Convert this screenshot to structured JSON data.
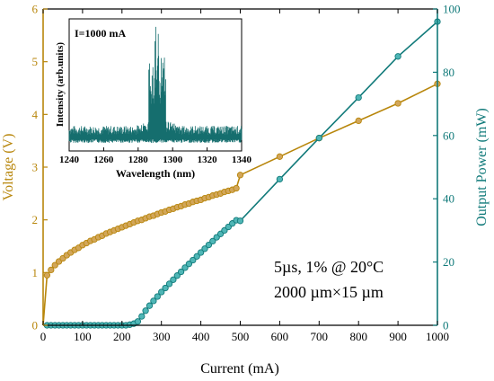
{
  "chart_data": {
    "type": "line",
    "colors": {
      "voltage": "#b8860b",
      "voltage_fill": "#d2a65a",
      "power": "#117a7a",
      "power_fill": "#4fb6b6",
      "axes": "#000000",
      "inset": "#156e6e"
    },
    "xlabel": "Current (mA)",
    "ylabel_left": "Voltage (V)",
    "ylabel_right": "Output Power (mW)",
    "xlim": [
      0,
      1000
    ],
    "ylim_left": [
      0,
      6
    ],
    "ylim_right": [
      0,
      100
    ],
    "xticks": [
      "0",
      "100",
      "200",
      "300",
      "400",
      "500",
      "600",
      "700",
      "800",
      "900",
      "1000"
    ],
    "yticks_left": [
      "0",
      "1",
      "2",
      "3",
      "4",
      "5",
      "6"
    ],
    "yticks_right": [
      "0",
      "20",
      "40",
      "60",
      "80",
      "100"
    ],
    "annotation_lines": [
      "5µs, 1% @ 20°C",
      "2000 µm×15 µm"
    ],
    "series": [
      {
        "axis": "left",
        "x": [
          0,
          10,
          20,
          30,
          40,
          50,
          60,
          70,
          80,
          90,
          100,
          110,
          120,
          130,
          140,
          150,
          160,
          170,
          180,
          190,
          200,
          210,
          220,
          230,
          240,
          250,
          260,
          270,
          280,
          290,
          300,
          310,
          320,
          330,
          340,
          350,
          360,
          370,
          380,
          390,
          400,
          410,
          420,
          430,
          440,
          450,
          460,
          470,
          480,
          490,
          500,
          600,
          700,
          800,
          900,
          1000
        ],
        "values": [
          0,
          0.95,
          1.05,
          1.14,
          1.21,
          1.27,
          1.33,
          1.38,
          1.43,
          1.47,
          1.52,
          1.56,
          1.6,
          1.63,
          1.67,
          1.7,
          1.74,
          1.77,
          1.8,
          1.83,
          1.86,
          1.89,
          1.92,
          1.95,
          1.98,
          2.0,
          2.03,
          2.06,
          2.08,
          2.11,
          2.14,
          2.16,
          2.19,
          2.21,
          2.24,
          2.26,
          2.29,
          2.31,
          2.34,
          2.36,
          2.38,
          2.41,
          2.43,
          2.46,
          2.48,
          2.5,
          2.53,
          2.55,
          2.57,
          2.6,
          2.85,
          3.2,
          3.55,
          3.88,
          4.21,
          4.58
        ]
      },
      {
        "axis": "right",
        "x": [
          0,
          10,
          20,
          30,
          40,
          50,
          60,
          70,
          80,
          90,
          100,
          110,
          120,
          130,
          140,
          150,
          160,
          170,
          180,
          190,
          200,
          210,
          220,
          230,
          240,
          250,
          260,
          270,
          280,
          290,
          300,
          310,
          320,
          330,
          340,
          350,
          360,
          370,
          380,
          390,
          400,
          410,
          420,
          430,
          440,
          450,
          460,
          470,
          480,
          490,
          500,
          600,
          700,
          800,
          900,
          1000
        ],
        "values": [
          0,
          0,
          0,
          0,
          0,
          0,
          0,
          0,
          0,
          0,
          0,
          0,
          0,
          0,
          0,
          0,
          0,
          0,
          0,
          0,
          0,
          0,
          0.2,
          0.5,
          1.2,
          2.8,
          4.6,
          6.2,
          7.7,
          9.1,
          10.5,
          11.8,
          13.1,
          14.4,
          15.7,
          16.9,
          18.2,
          19.4,
          20.6,
          21.8,
          23.0,
          24.2,
          25.4,
          26.6,
          27.8,
          28.9,
          30.0,
          31.1,
          32.2,
          33.2,
          33.0,
          46.2,
          59.2,
          72.0,
          85.0,
          96.0
        ]
      }
    ],
    "inset": {
      "label": "I=1000 mA",
      "xlabel": "Wavelength (nm)",
      "ylabel": "Intensity (arb.units)",
      "xlim": [
        1240,
        1340
      ],
      "xticks": [
        "1240",
        "1260",
        "1280",
        "1300",
        "1320",
        "1340"
      ],
      "peak_nm": 1291
    }
  }
}
